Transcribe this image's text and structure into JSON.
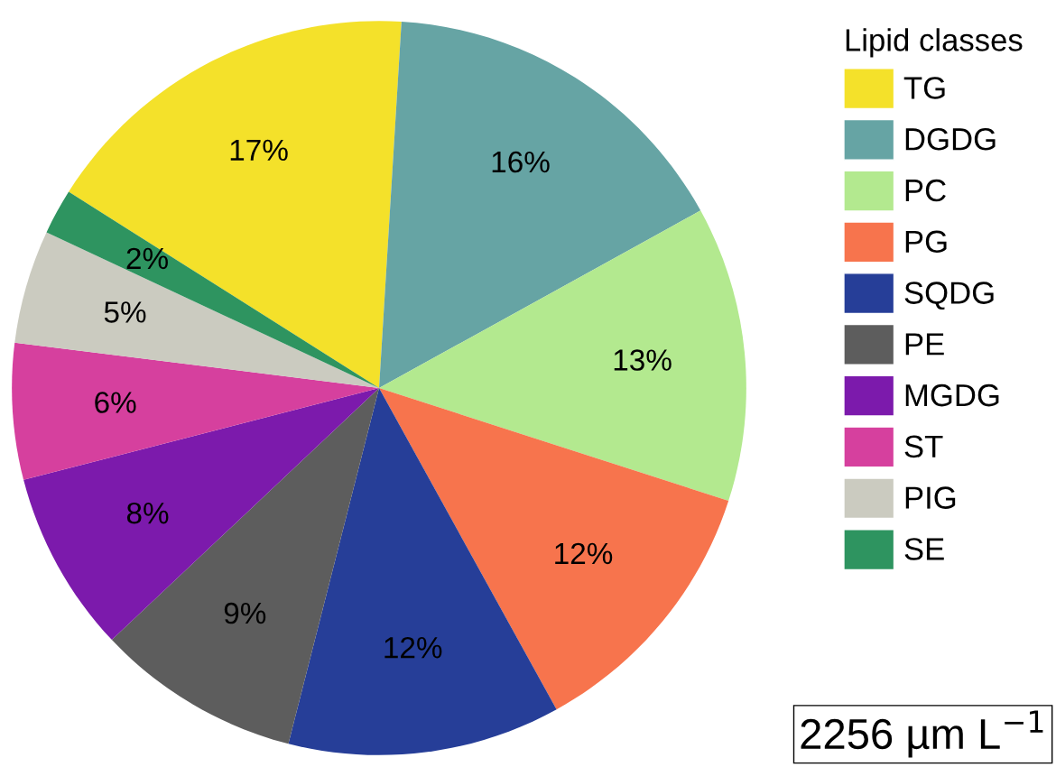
{
  "chart_data": {
    "type": "pie",
    "categories": [
      "TG",
      "DGDG",
      "PC",
      "PG",
      "SQDG",
      "PE",
      "MGDG",
      "ST",
      "PIG",
      "SE"
    ],
    "values": [
      17,
      16,
      13,
      12,
      12,
      9,
      8,
      6,
      5,
      2
    ],
    "value_labels": [
      "17%",
      "16%",
      "13%",
      "12%",
      "12%",
      "9%",
      "8%",
      "6%",
      "5%",
      "2%"
    ],
    "colors": [
      "#f4e12a",
      "#66a4a4",
      "#b3e98f",
      "#f7744d",
      "#263e98",
      "#5d5d5d",
      "#7c1aac",
      "#d6409e",
      "#cbcbc0",
      "#2e9460"
    ],
    "legend_title": "Lipid classes",
    "legend": "right",
    "annotations": [
      "2256 µm L$^{−1}$"
    ]
  }
}
